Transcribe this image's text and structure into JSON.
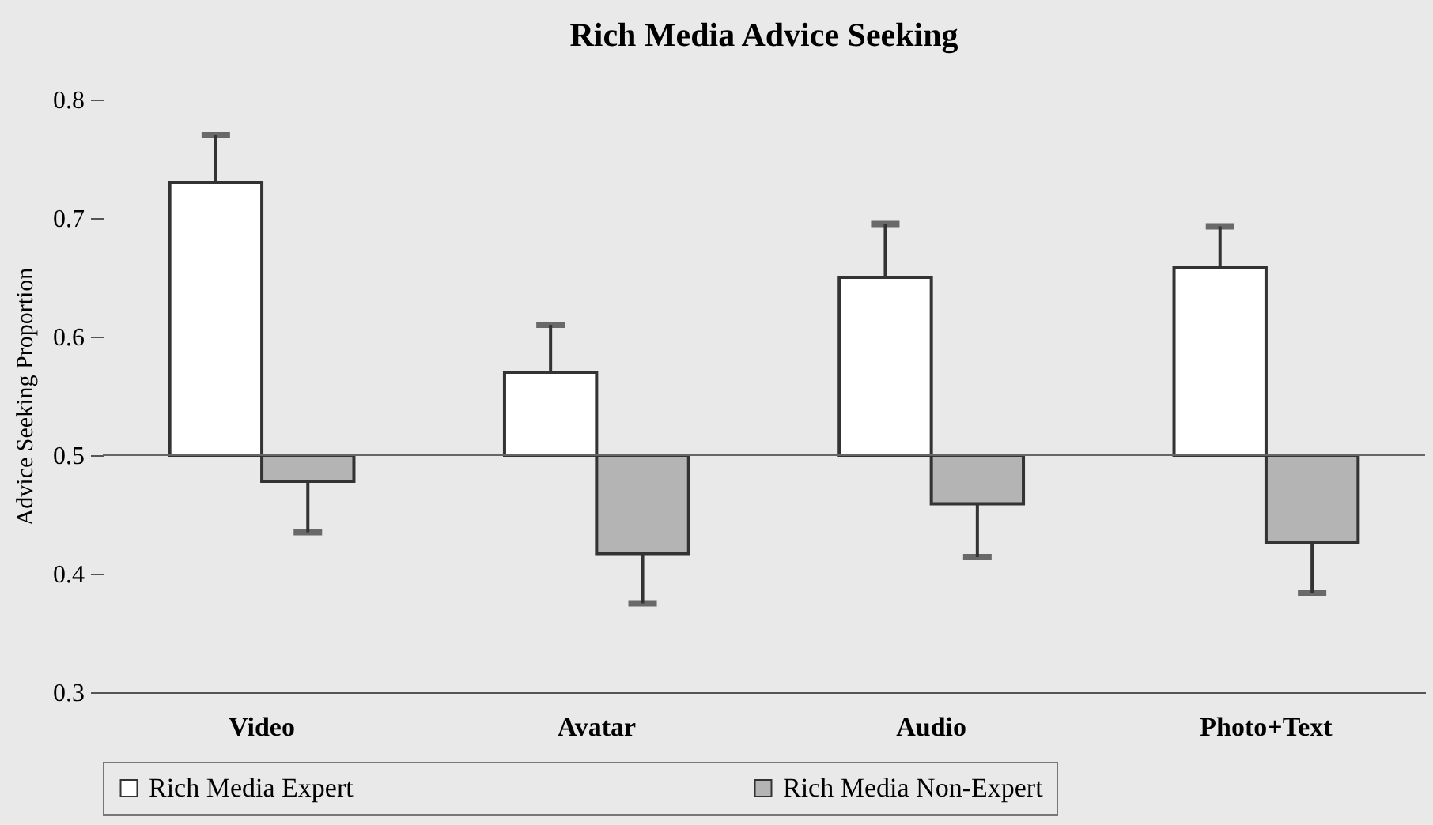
{
  "chart_data": {
    "type": "bar",
    "title": "Rich Media Advice Seeking",
    "ylabel": "Advice Seeking Proportion",
    "categories": [
      "Video",
      "Avatar",
      "Audio",
      "Photo+Text"
    ],
    "series": [
      {
        "name": "Rich Media Expert",
        "color": "#ffffff",
        "base": [
          0.5,
          0.5,
          0.5,
          0.5
        ],
        "values": [
          0.23,
          0.07,
          0.15,
          0.158
        ],
        "errors": [
          [
            0.73,
            0.77
          ],
          [
            0.57,
            0.61
          ],
          [
            0.65,
            0.695
          ],
          [
            0.658,
            0.693
          ]
        ]
      },
      {
        "name": "Rich Media Non-Expert",
        "color": "#b4b4b4",
        "base": [
          0.5,
          0.5,
          0.5,
          0.5
        ],
        "values": [
          -0.022,
          -0.083,
          -0.041,
          -0.074
        ],
        "errors": [
          [
            0.435,
            0.478
          ],
          [
            0.375,
            0.417
          ],
          [
            0.414,
            0.459
          ],
          [
            0.384,
            0.426
          ]
        ]
      }
    ],
    "ylim": [
      0.3,
      0.8
    ],
    "yticks": [
      0.3,
      0.4,
      0.5,
      0.6,
      0.7,
      0.8
    ],
    "ref_lines": [
      {
        "axis": "y",
        "value": 0.5
      }
    ],
    "grid": false,
    "legend": "bottom"
  }
}
